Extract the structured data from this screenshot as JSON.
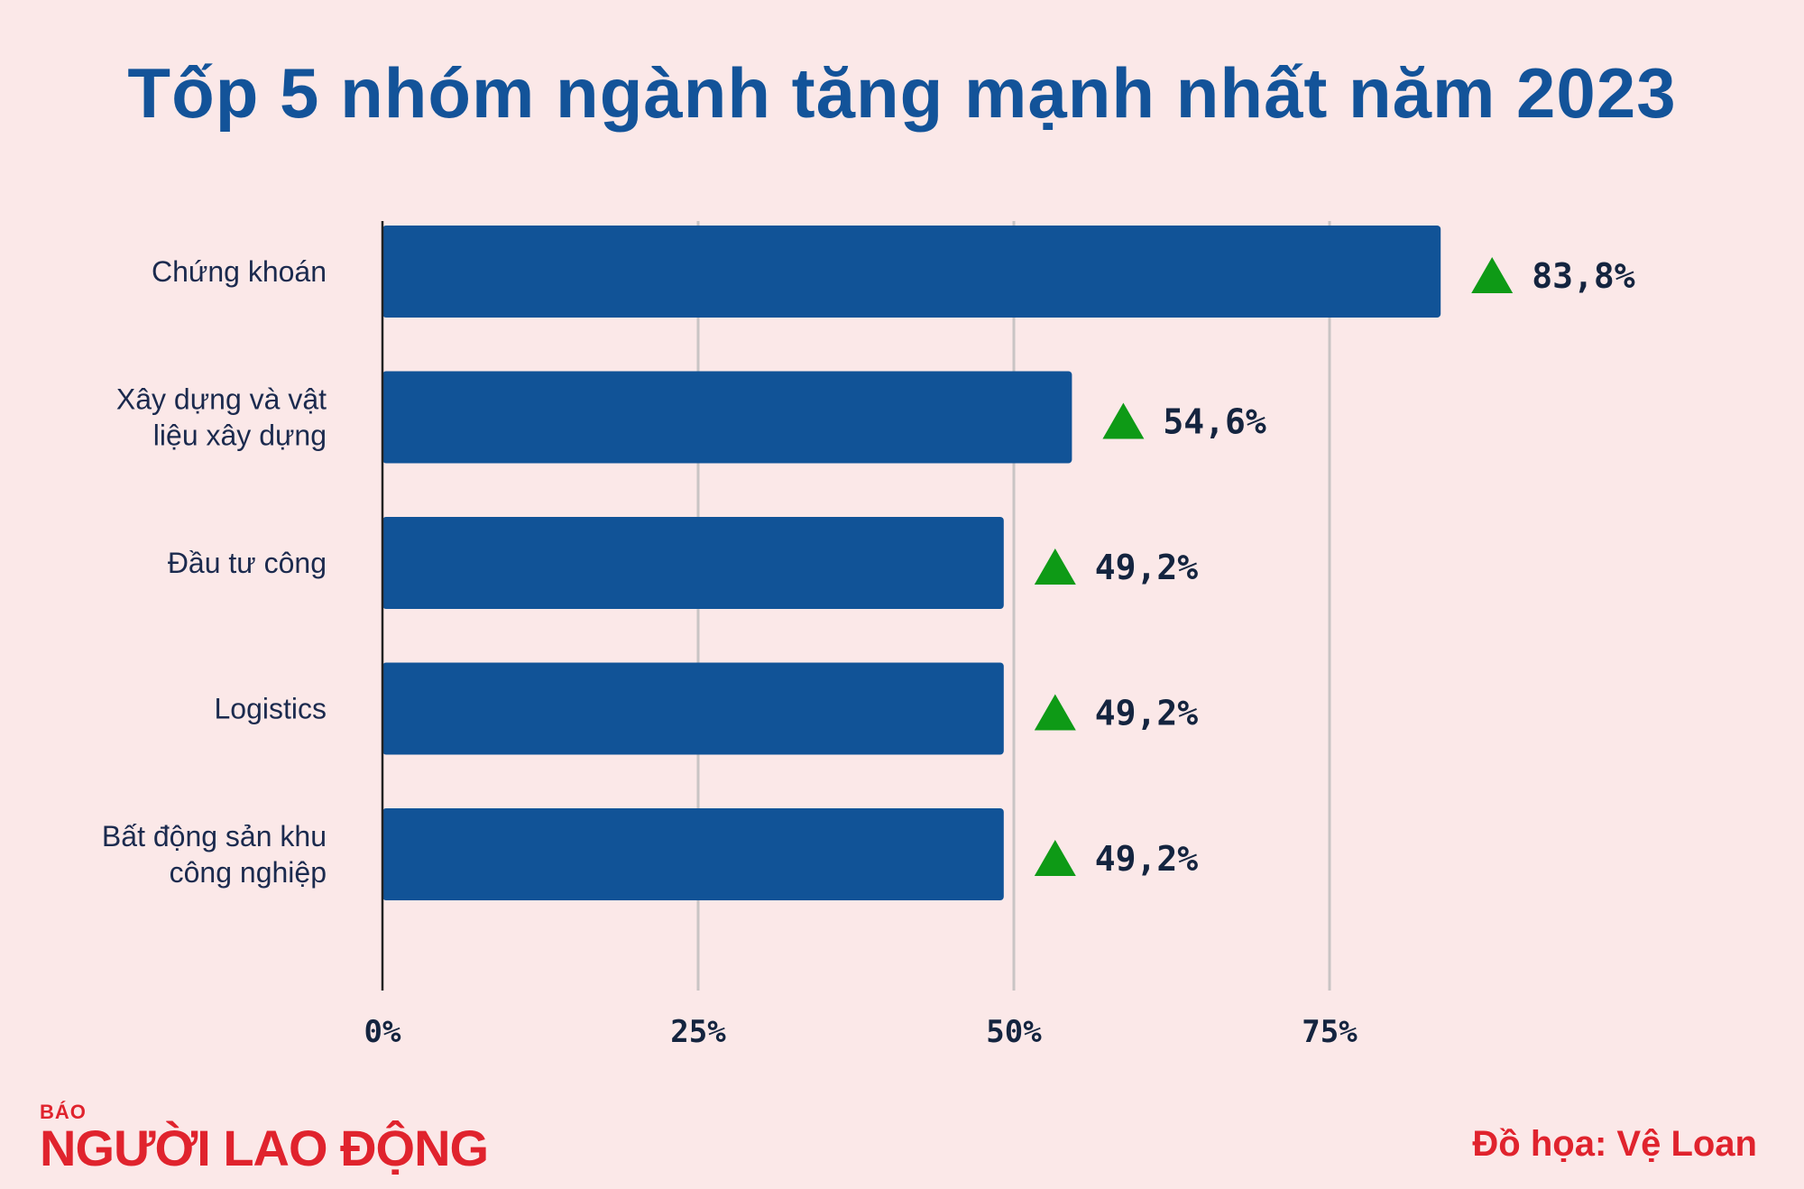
{
  "title": "Tốp 5 nhóm ngành tăng mạnh nhất năm 2023",
  "colors": {
    "bar": "#115397",
    "arrow": "#0e9a16",
    "grid": "#c9c4c4",
    "background": "#fbe8e8",
    "brand": "#e0232d"
  },
  "chart_data": {
    "type": "bar",
    "orientation": "horizontal",
    "categories": [
      [
        "Chứng khoán"
      ],
      [
        "Xây dựng và vật",
        "liệu xây dựng"
      ],
      [
        "Đầu tư công"
      ],
      [
        "Logistics"
      ],
      [
        "Bất động sản khu",
        "công nghiệp"
      ]
    ],
    "values": [
      83.8,
      54.6,
      49.2,
      49.2,
      49.2
    ],
    "value_labels": [
      "83,8%",
      "54,6%",
      "49,2%",
      "49,2%",
      "49,2%"
    ],
    "indicator": "up-triangle-icon",
    "xlim": [
      0,
      100
    ],
    "xticks": [
      0,
      25,
      50,
      75
    ],
    "xtick_labels": [
      "0%",
      "25%",
      "50%",
      "75%"
    ],
    "grid": true
  },
  "logo": {
    "small": "BÁO",
    "main": "NGƯỜI LAO ĐỘNG"
  },
  "credit": "Đồ họa: Vệ Loan"
}
